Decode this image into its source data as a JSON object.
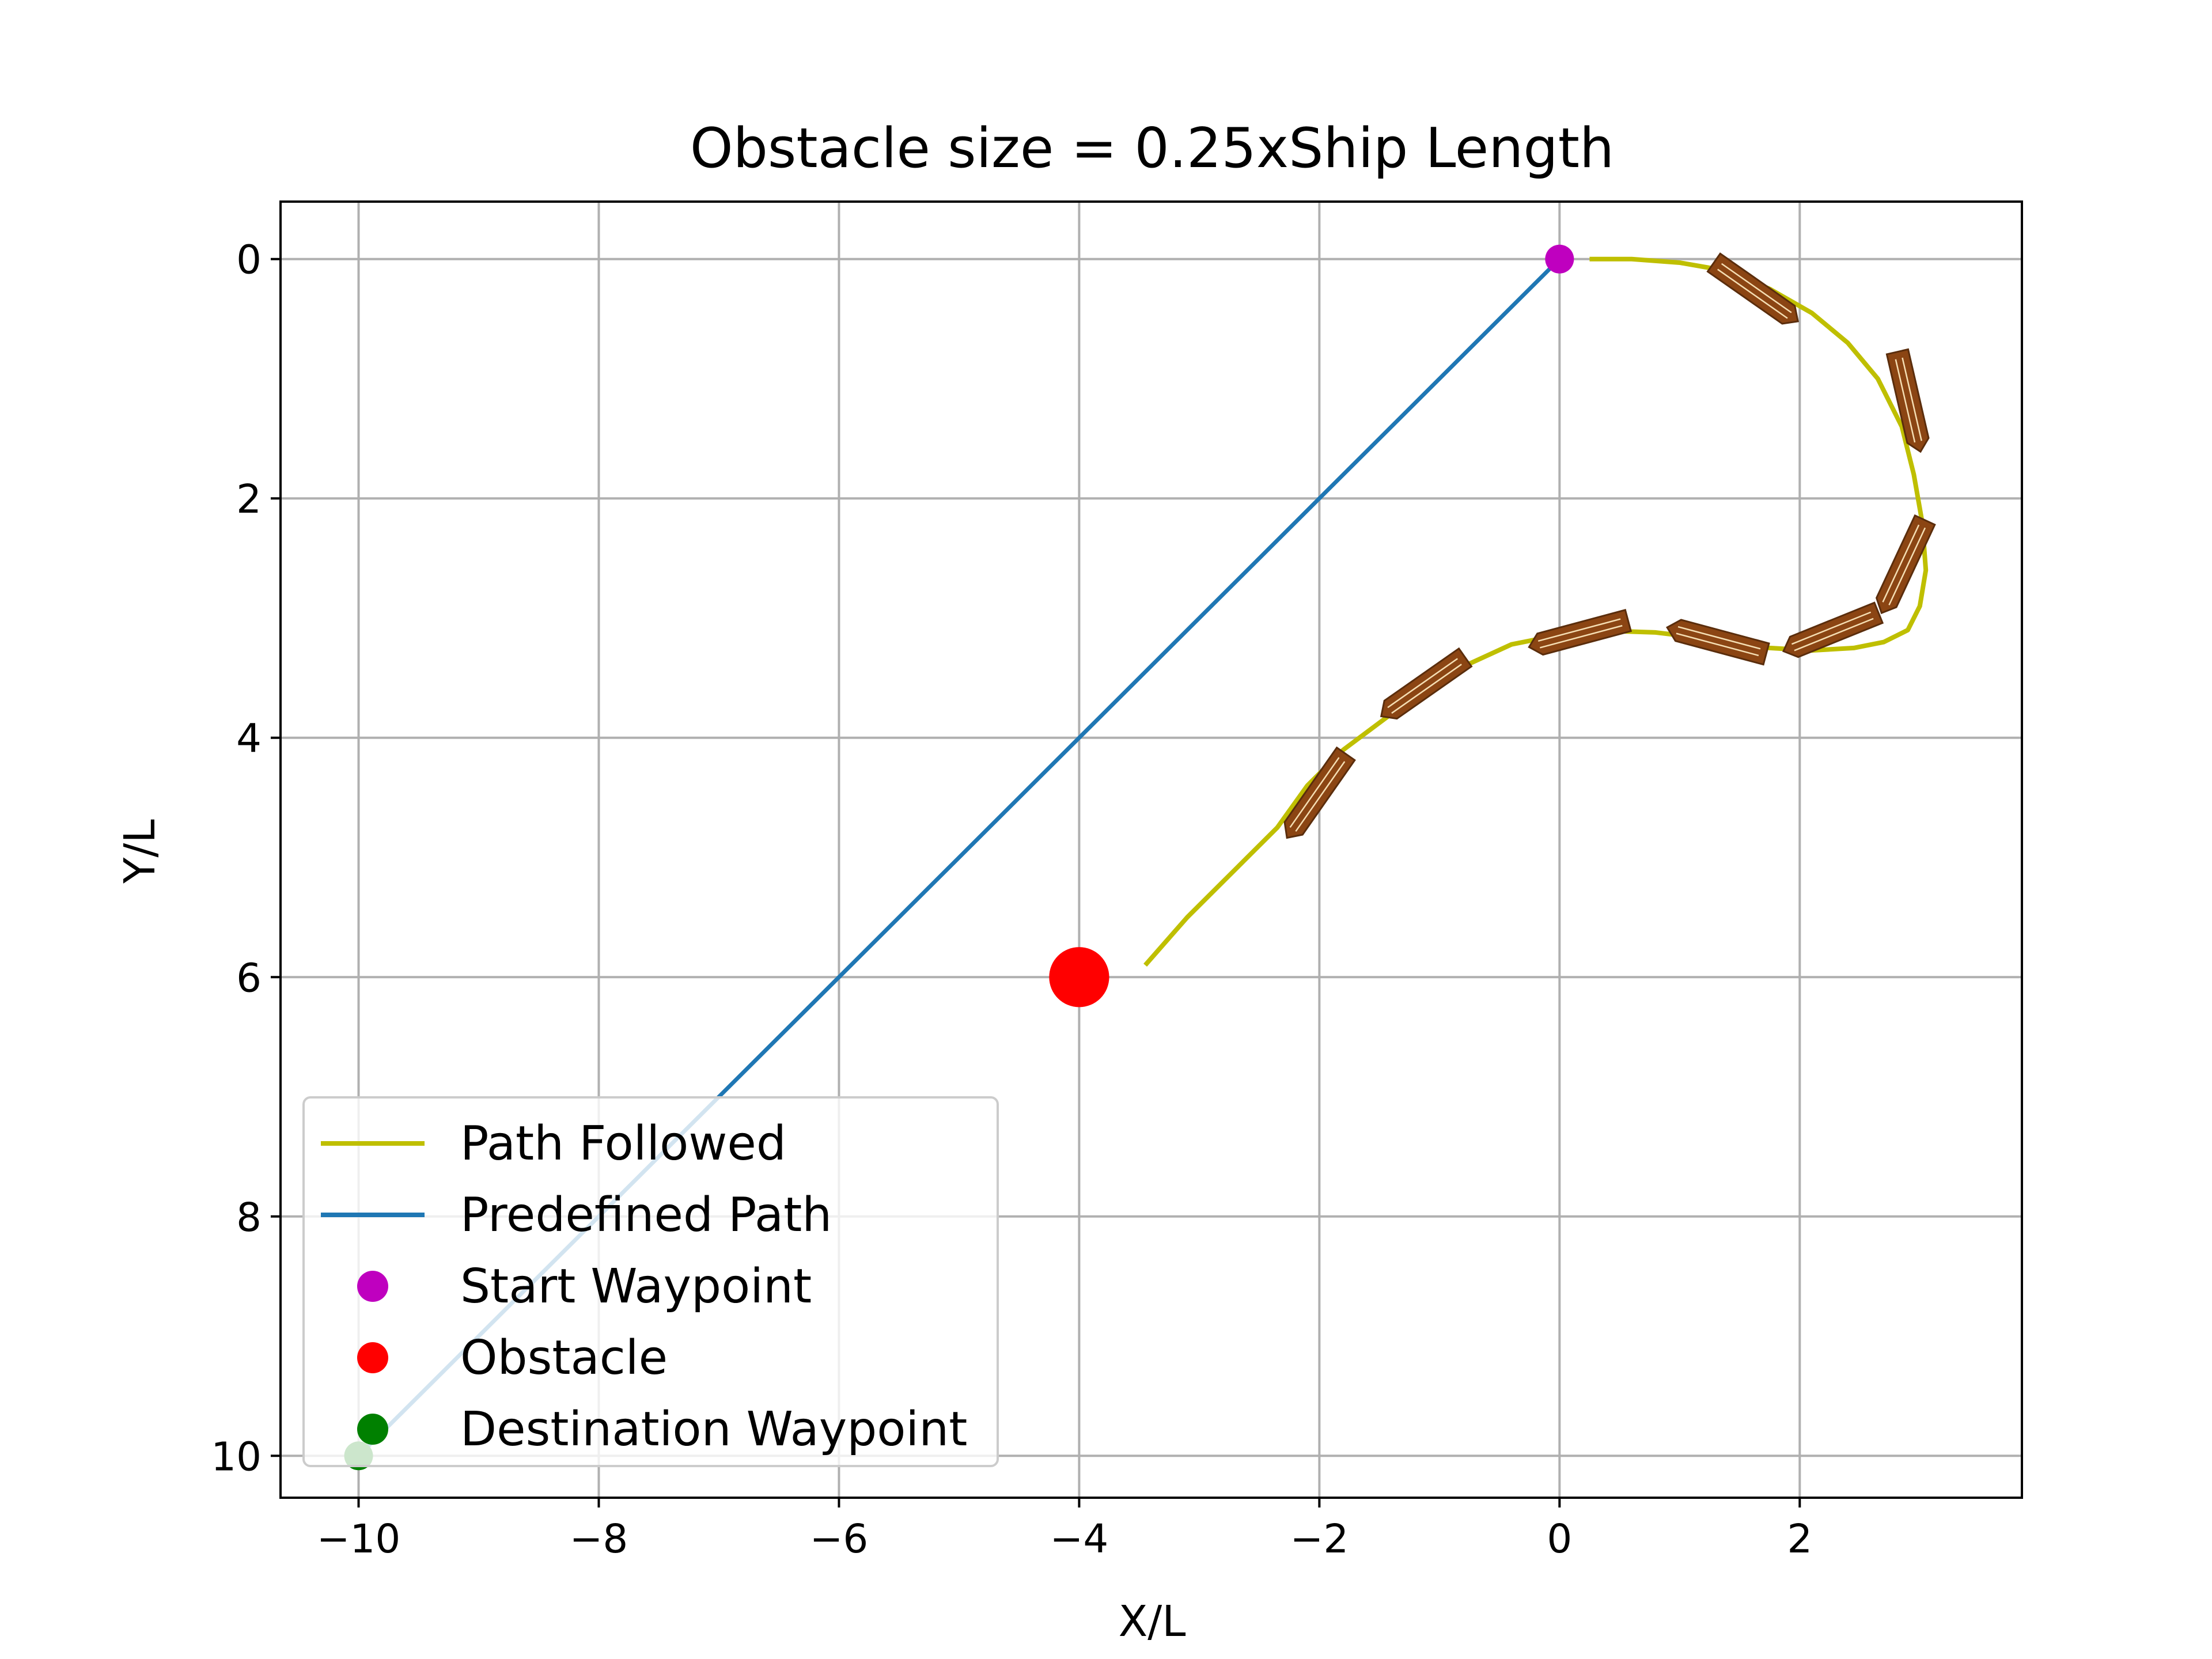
{
  "chart_data": {
    "type": "line",
    "title": "Obstacle size = 0.25xShip Length",
    "xlabel": "X/L",
    "ylabel": "Y/L",
    "xlim": [
      -10.65,
      3.85
    ],
    "ylim": [
      -0.48,
      10.35
    ],
    "y_inverted": true,
    "grid": true,
    "legend_position": "lower-left",
    "xticks": [
      -10,
      -8,
      -6,
      -4,
      -2,
      0,
      2
    ],
    "xtick_labels": [
      "−10",
      "−8",
      "−6",
      "−4",
      "−2",
      "0",
      "2"
    ],
    "yticks": [
      0,
      2,
      4,
      6,
      8,
      10
    ],
    "ytick_labels": [
      "0",
      "2",
      "4",
      "6",
      "8",
      "10"
    ],
    "colors": {
      "path_followed": "#bfbf00",
      "predefined_path": "#1f77b4",
      "start": "#bf00bf",
      "obstacle": "#ff0000",
      "destination": "#008000",
      "ship_fill": "#8b4513",
      "grid": "#b0b0b0"
    },
    "series": [
      {
        "name": "Path Followed",
        "x": [
          0.25,
          0.6,
          1.0,
          1.4,
          1.75,
          2.1,
          2.4,
          2.65,
          2.85,
          2.95,
          3.02,
          3.05,
          3.0,
          2.9,
          2.7,
          2.45,
          2.1,
          1.75,
          1.3,
          0.8,
          0.2,
          -0.4,
          -0.9,
          -1.4,
          -1.8,
          -2.1,
          -2.35,
          -2.7,
          -3.1,
          -3.45
        ],
        "y": [
          0.0,
          0.0,
          0.03,
          0.1,
          0.25,
          0.45,
          0.7,
          1.0,
          1.4,
          1.8,
          2.2,
          2.6,
          2.9,
          3.1,
          3.2,
          3.25,
          3.27,
          3.25,
          3.18,
          3.12,
          3.1,
          3.22,
          3.45,
          3.8,
          4.1,
          4.4,
          4.75,
          5.1,
          5.5,
          5.9
        ]
      },
      {
        "name": "Predefined Path",
        "x": [
          0,
          -10
        ],
        "y": [
          0,
          10
        ]
      }
    ],
    "points": [
      {
        "name": "Start Waypoint",
        "x": 0,
        "y": 0
      },
      {
        "name": "Obstacle",
        "x": -4,
        "y": 6
      },
      {
        "name": "Destination Waypoint",
        "x": -10,
        "y": 10
      }
    ],
    "obstacle_radius": 0.25,
    "ships": [
      {
        "x": 1.6,
        "y": 0.25,
        "heading_deg": 35
      },
      {
        "x": 2.9,
        "y": 1.15,
        "heading_deg": 77
      },
      {
        "x": 2.88,
        "y": 2.53,
        "heading_deg": 115
      },
      {
        "x": 2.3,
        "y": 3.1,
        "heading_deg": 158
      },
      {
        "x": 1.35,
        "y": 3.2,
        "heading_deg": 195
      },
      {
        "x": 0.2,
        "y": 3.12,
        "heading_deg": 165
      },
      {
        "x": -1.1,
        "y": 3.55,
        "heading_deg": 145
      },
      {
        "x": -2.0,
        "y": 4.45,
        "heading_deg": 125
      }
    ]
  },
  "legend": [
    {
      "label": "Path Followed",
      "kind": "line",
      "color": "#bfbf00"
    },
    {
      "label": "Predefined Path",
      "kind": "line",
      "color": "#1f77b4"
    },
    {
      "label": "Start Waypoint",
      "kind": "marker",
      "color": "#bf00bf"
    },
    {
      "label": "Obstacle",
      "kind": "marker",
      "color": "#ff0000"
    },
    {
      "label": "Destination Waypoint",
      "kind": "marker",
      "color": "#008000"
    }
  ]
}
